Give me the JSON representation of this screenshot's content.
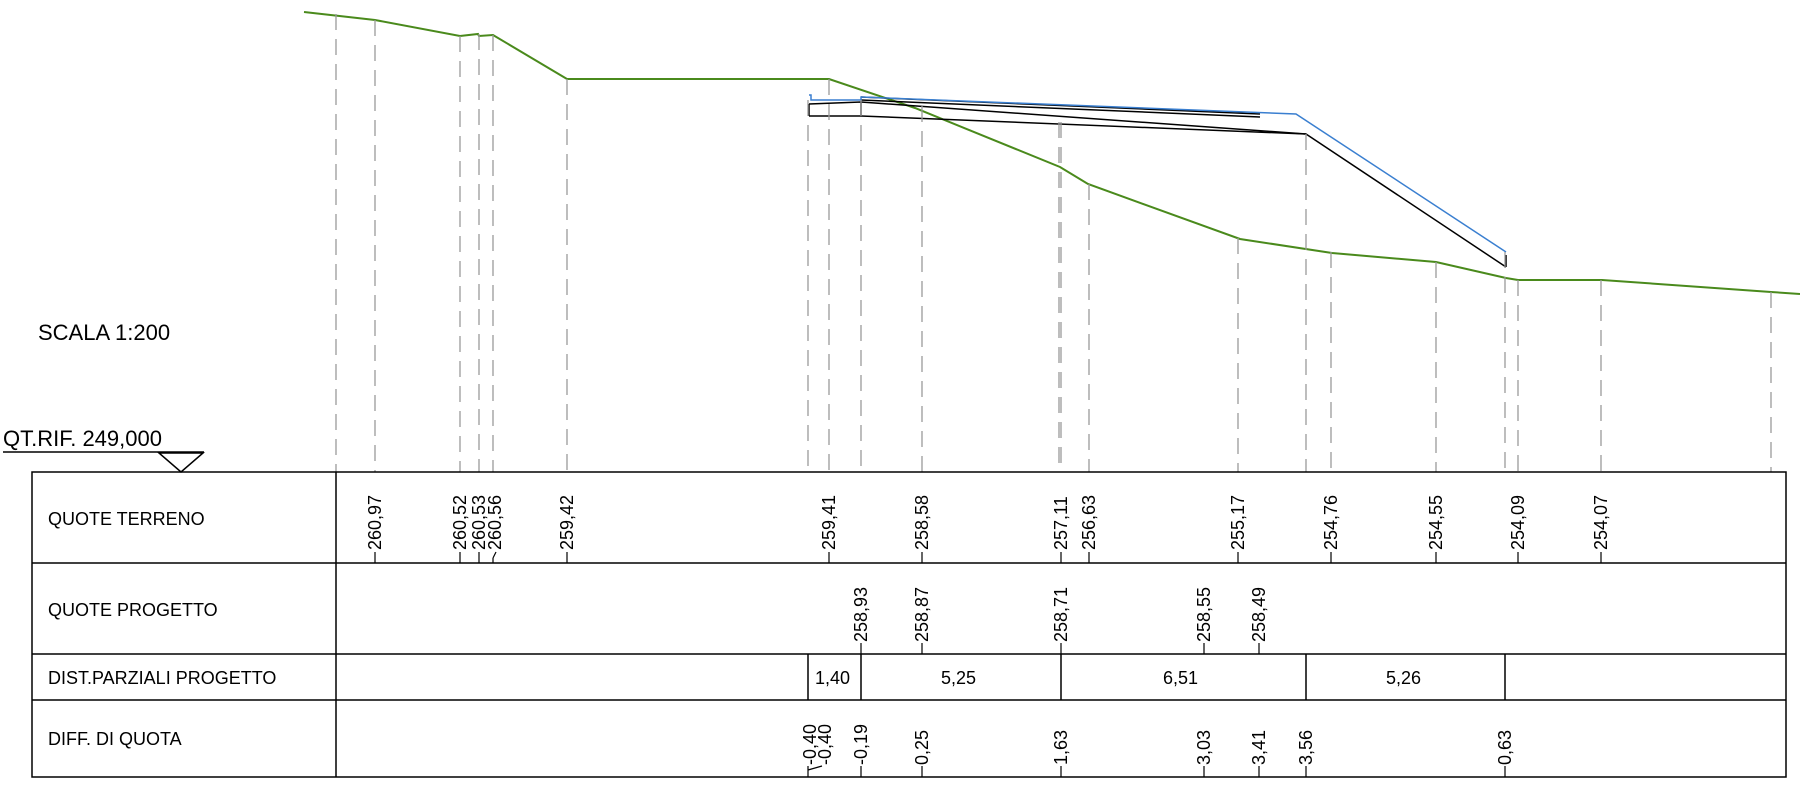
{
  "scale_label": "SCALA 1:200",
  "ref_label": "QT.RIF. 249,000",
  "rows": {
    "terrain": "QUOTE TERRENO",
    "project": "QUOTE PROGETTO",
    "distances": "DIST.PARZIALI PROGETTO",
    "difference": "DIFF. DI QUOTA"
  },
  "terrain_values": [
    "260,97",
    "260,52",
    "260,53",
    "260,56",
    "259,42",
    "259,41",
    "258,58",
    "257,11",
    "256,63",
    "255,17",
    "254,76",
    "254,55",
    "254,09",
    "254,07"
  ],
  "project_values": [
    "258,93",
    "258,87",
    "258,71",
    "258,55",
    "258,49"
  ],
  "distance_values": [
    "1,40",
    "5,25",
    "6,51",
    "5,26"
  ],
  "difference_values": [
    "-0,40",
    "-0,40",
    "-0,19",
    "0,25",
    "1,63",
    "3,03",
    "3,41",
    "3,56",
    "0,63"
  ],
  "colors": {
    "terrain_line": "#4a8a1c",
    "project_line": "#3a7fd0",
    "structure_line": "#000000",
    "grid": "#000000",
    "dash": "#9a9a9a"
  }
}
